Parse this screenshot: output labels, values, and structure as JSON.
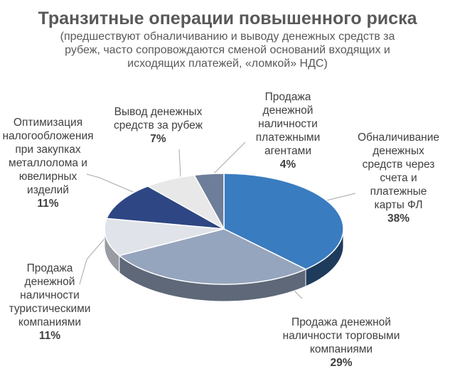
{
  "chart_data": {
    "type": "pie",
    "title": "Транзитные операции повышенного риска",
    "subtitle": "(предшествуют обналичиванию и выводу денежных средств за рубеж, часто сопровождаются сменой оснований входящих и исходящих платежей, «ломкой» НДС)",
    "slices": [
      {
        "label": "Обналичивание\nденежных\nсредств через\nсчета и\nплатежные\nкарты ФЛ",
        "value": 38,
        "pct": "38%",
        "color": "#3A7CC0",
        "side": "#1F3B5C"
      },
      {
        "label": "Продажа денежной\nналичности торговыми\nкомпаниями",
        "value": 29,
        "pct": "29%",
        "color": "#96A5BE",
        "side": "#5E6878"
      },
      {
        "label": "Продажа\nденежной\nналичности\nтуристическими\nкомпаниями",
        "value": 11,
        "pct": "11%",
        "color": "#E1E3EA",
        "side": "#9A9CA3"
      },
      {
        "label": "Оптимизация\nналогообложения\nпри закупках\nметаллолома и\nювелирных\nизделий",
        "value": 11,
        "pct": "11%",
        "color": "#2E4683",
        "side": "#1C2B50"
      },
      {
        "label": "Вывод денежных\nсредств за рубеж",
        "value": 7,
        "pct": "7%",
        "color": "#E8E8E8",
        "side": "#A0A0A0"
      },
      {
        "label": "Продажа\nденежной\nналичности\nплатежными\nагентами",
        "value": 4,
        "pct": "4%",
        "color": "#6E7E9A",
        "side": "#454F60"
      }
    ]
  }
}
